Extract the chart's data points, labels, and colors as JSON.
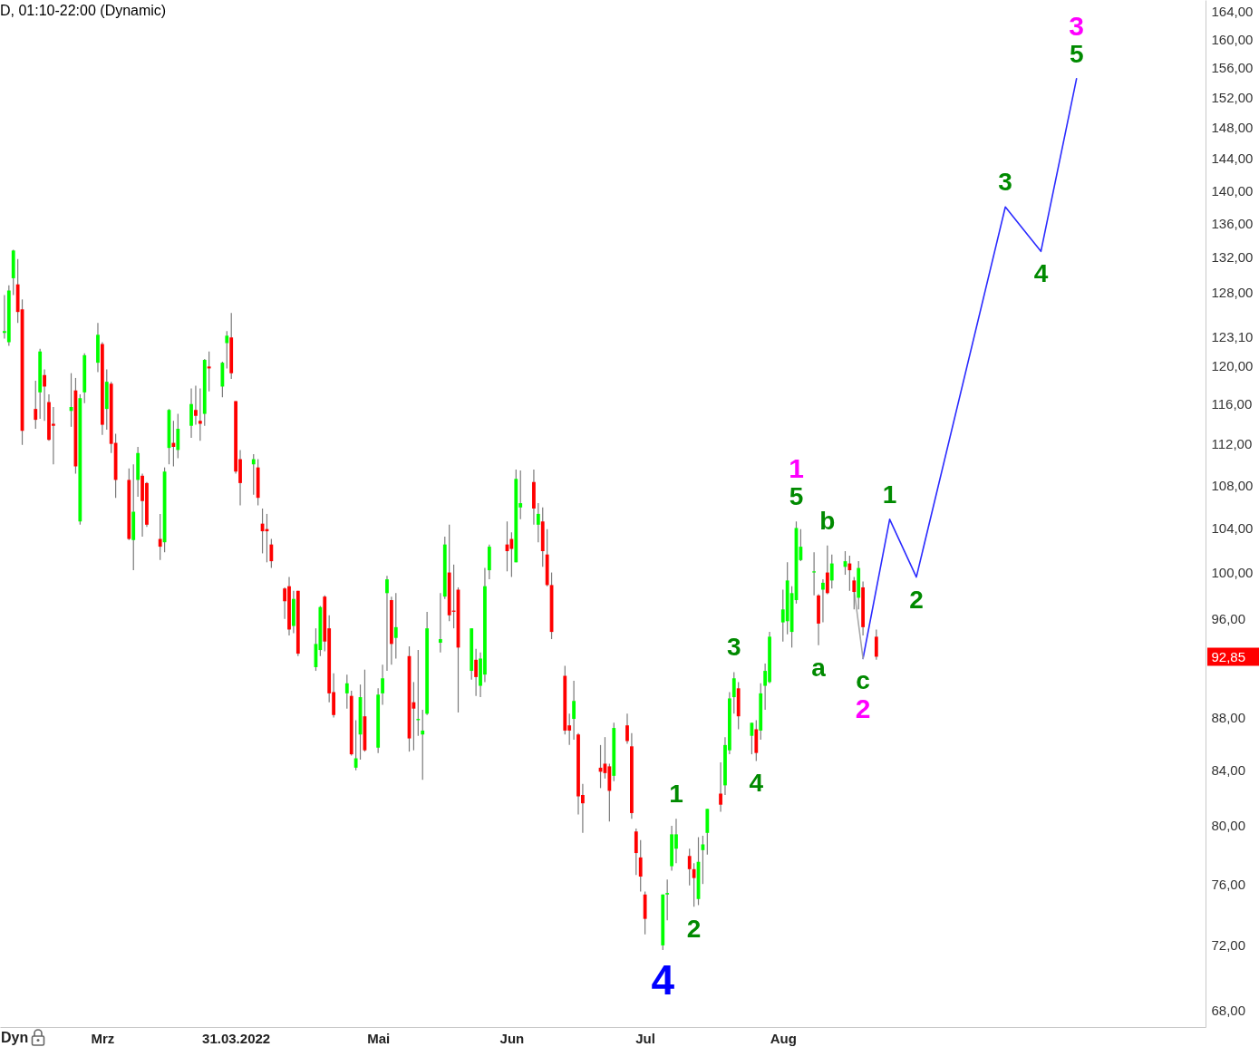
{
  "chart_data": {
    "type": "candlestick",
    "title": "D, 01:10-22:00 (Dynamic)",
    "x": [
      "2022-02-07",
      "2022-02-08",
      "2022-02-09",
      "2022-02-10",
      "2022-02-11",
      "2022-02-14",
      "2022-02-15",
      "2022-02-16",
      "2022-02-17",
      "2022-02-18",
      "2022-02-22",
      "2022-02-23",
      "2022-02-24",
      "2022-02-25",
      "2022-02-28",
      "2022-03-01",
      "2022-03-02",
      "2022-03-03",
      "2022-03-04",
      "2022-03-07",
      "2022-03-08",
      "2022-03-09",
      "2022-03-10",
      "2022-03-11",
      "2022-03-14",
      "2022-03-15",
      "2022-03-16",
      "2022-03-17",
      "2022-03-18",
      "2022-03-21",
      "2022-03-22",
      "2022-03-23",
      "2022-03-24",
      "2022-03-25",
      "2022-03-28",
      "2022-03-29",
      "2022-03-30",
      "2022-03-31",
      "2022-04-01",
      "2022-04-04",
      "2022-04-05",
      "2022-04-06",
      "2022-04-07",
      "2022-04-08",
      "2022-04-11",
      "2022-04-12",
      "2022-04-13",
      "2022-04-14",
      "2022-04-18",
      "2022-04-19",
      "2022-04-20",
      "2022-04-21",
      "2022-04-22",
      "2022-04-25",
      "2022-04-26",
      "2022-04-27",
      "2022-04-28",
      "2022-04-29",
      "2022-05-02",
      "2022-05-03",
      "2022-05-04",
      "2022-05-05",
      "2022-05-06",
      "2022-05-09",
      "2022-05-10",
      "2022-05-11",
      "2022-05-12",
      "2022-05-13",
      "2022-05-16",
      "2022-05-17",
      "2022-05-18",
      "2022-05-19",
      "2022-05-20",
      "2022-05-23",
      "2022-05-24",
      "2022-05-25",
      "2022-05-26",
      "2022-05-27",
      "2022-05-31",
      "2022-06-01",
      "2022-06-02",
      "2022-06-03",
      "2022-06-06",
      "2022-06-07",
      "2022-06-08",
      "2022-06-09",
      "2022-06-10",
      "2022-06-13",
      "2022-06-14",
      "2022-06-15",
      "2022-06-16",
      "2022-06-17",
      "2022-06-21",
      "2022-06-22",
      "2022-06-23",
      "2022-06-24",
      "2022-06-27",
      "2022-06-28",
      "2022-06-29",
      "2022-06-30",
      "2022-07-01",
      "2022-07-05",
      "2022-07-06",
      "2022-07-07",
      "2022-07-08",
      "2022-07-11",
      "2022-07-12",
      "2022-07-13",
      "2022-07-14",
      "2022-07-15",
      "2022-07-18",
      "2022-07-19",
      "2022-07-20",
      "2022-07-21",
      "2022-07-22",
      "2022-07-25",
      "2022-07-26",
      "2022-07-27",
      "2022-07-28",
      "2022-07-29",
      "2022-08-01",
      "2022-08-02",
      "2022-08-03",
      "2022-08-04",
      "2022-08-05",
      "2022-08-08",
      "2022-08-09",
      "2022-08-10",
      "2022-08-11",
      "2022-08-12",
      "2022-08-15",
      "2022-08-16",
      "2022-08-17",
      "2022-08-18",
      "2022-08-19",
      "2022-08-22"
    ],
    "ohlc": [
      [
        123.5,
        127.7,
        122.9,
        123.7
      ],
      [
        122.5,
        128.8,
        122.1,
        128.2
      ],
      [
        129.6,
        132.9,
        127.7,
        132.8
      ],
      [
        128.9,
        131.8,
        124.6,
        125.8
      ],
      [
        126.1,
        127.2,
        111.9,
        113.3
      ],
      [
        115.5,
        118.4,
        113.5,
        114.4
      ],
      [
        117.2,
        121.8,
        114.5,
        121.5
      ],
      [
        119.0,
        119.6,
        114.3,
        117.8
      ],
      [
        116.2,
        117.0,
        112.3,
        112.4
      ],
      [
        114.0,
        115.7,
        110.0,
        113.8
      ],
      [
        115.3,
        119.2,
        113.7,
        115.7
      ],
      [
        117.4,
        118.7,
        109.1,
        109.8
      ],
      [
        104.6,
        117.0,
        104.3,
        116.6
      ],
      [
        117.2,
        121.3,
        116.1,
        121.1
      ],
      [
        120.3,
        124.6,
        119.3,
        123.3
      ],
      [
        122.3,
        122.5,
        112.9,
        113.9
      ],
      [
        115.5,
        119.6,
        113.4,
        118.3
      ],
      [
        118.1,
        118.3,
        111.1,
        112.0
      ],
      [
        112.1,
        113.0,
        106.8,
        108.5
      ],
      [
        108.5,
        109.6,
        102.9,
        103.0
      ],
      [
        102.9,
        110.0,
        100.2,
        105.5
      ],
      [
        108.5,
        111.7,
        106.9,
        111.1
      ],
      [
        108.9,
        109.1,
        103.2,
        106.5
      ],
      [
        108.2,
        108.3,
        104.1,
        104.3
      ],
      [
        103.0,
        105.3,
        101.1,
        102.3
      ],
      [
        102.7,
        109.7,
        101.8,
        109.3
      ],
      [
        111.6,
        115.5,
        110.0,
        115.4
      ],
      [
        112.1,
        114.3,
        109.8,
        111.7
      ],
      [
        111.4,
        115.0,
        110.6,
        113.5
      ],
      [
        113.8,
        117.6,
        112.6,
        116.0
      ],
      [
        115.4,
        117.9,
        113.9,
        114.8
      ],
      [
        114.3,
        117.6,
        112.3,
        114.0
      ],
      [
        115.0,
        120.7,
        113.8,
        120.6
      ],
      [
        119.9,
        121.5,
        117.3,
        119.7
      ],
      [
        117.8,
        120.4,
        116.7,
        120.3
      ],
      [
        122.4,
        123.7,
        119.7,
        123.2
      ],
      [
        123.0,
        125.7,
        118.6,
        119.2
      ],
      [
        116.3,
        116.3,
        109.1,
        109.3
      ],
      [
        110.5,
        111.4,
        106.1,
        108.2
      ],
      [
        110.0,
        111.0,
        107.1,
        110.5
      ],
      [
        109.7,
        110.5,
        106.1,
        106.8
      ],
      [
        104.4,
        105.8,
        101.7,
        103.7
      ],
      [
        103.9,
        105.3,
        100.9,
        103.7
      ],
      [
        102.5,
        103.0,
        100.4,
        101.0
      ],
      [
        98.6,
        98.7,
        96.0,
        97.5
      ],
      [
        98.8,
        99.6,
        94.6,
        95.1
      ],
      [
        95.4,
        98.4,
        94.8,
        97.7
      ],
      [
        98.4,
        98.4,
        92.9,
        93.1
      ],
      [
        92.0,
        95.2,
        91.7,
        93.9
      ],
      [
        93.4,
        97.1,
        92.9,
        97.0
      ],
      [
        97.9,
        98.0,
        93.3,
        94.1
      ],
      [
        95.2,
        96.3,
        89.2,
        89.9
      ],
      [
        90.0,
        91.5,
        88.0,
        88.2
      ],
      [
        89.9,
        91.4,
        88.7,
        90.7
      ],
      [
        89.7,
        90.1,
        85.1,
        85.2
      ],
      [
        84.2,
        87.8,
        84.0,
        84.9
      ],
      [
        86.7,
        90.6,
        84.8,
        89.6
      ],
      [
        88.1,
        91.8,
        85.4,
        85.5
      ],
      [
        85.7,
        90.3,
        85.3,
        89.8
      ],
      [
        89.9,
        92.2,
        89.0,
        91.1
      ],
      [
        98.2,
        99.7,
        91.7,
        99.4
      ],
      [
        97.6,
        97.9,
        92.2,
        93.9
      ],
      [
        94.4,
        98.2,
        92.7,
        95.3
      ],
      [
        92.9,
        93.7,
        85.4,
        86.4
      ],
      [
        89.2,
        90.8,
        85.5,
        88.7
      ],
      [
        87.8,
        93.4,
        86.6,
        87.9
      ],
      [
        86.7,
        88.6,
        83.3,
        87.0
      ],
      [
        88.3,
        96.6,
        88.2,
        95.2
      ],
      [
        94.0,
        98.2,
        93.2,
        94.3
      ],
      [
        97.9,
        103.2,
        97.7,
        102.5
      ],
      [
        100.0,
        104.3,
        95.8,
        96.3
      ],
      [
        96.7,
        100.7,
        95.2,
        96.6
      ],
      [
        98.5,
        98.7,
        88.4,
        93.6
      ],
      [
        91.7,
        95.2,
        91.0,
        95.2
      ],
      [
        92.6,
        93.5,
        89.7,
        91.2
      ],
      [
        90.5,
        93.2,
        89.6,
        92.7
      ],
      [
        91.4,
        100.4,
        90.8,
        98.8
      ],
      [
        100.2,
        102.5,
        99.4,
        102.3
      ],
      [
        102.5,
        104.6,
        100.1,
        101.9
      ],
      [
        103.0,
        103.6,
        99.6,
        102.1
      ],
      [
        100.9,
        109.5,
        100.9,
        108.6
      ],
      [
        105.9,
        109.4,
        104.8,
        106.3
      ],
      [
        108.3,
        109.5,
        104.3,
        105.8
      ],
      [
        104.3,
        106.3,
        102.7,
        105.3
      ],
      [
        104.6,
        105.9,
        100.5,
        101.9
      ],
      [
        101.6,
        103.9,
        98.8,
        98.9
      ],
      [
        98.9,
        100.0,
        94.3,
        94.9
      ],
      [
        91.3,
        92.1,
        86.7,
        87.0
      ],
      [
        87.4,
        88.3,
        85.9,
        87.0
      ],
      [
        87.9,
        90.9,
        86.3,
        89.3
      ],
      [
        86.7,
        86.8,
        80.8,
        82.1
      ],
      [
        82.2,
        83.0,
        79.5,
        81.6
      ],
      [
        84.2,
        85.9,
        82.7,
        83.9
      ],
      [
        84.5,
        86.5,
        83.4,
        83.8
      ],
      [
        84.3,
        84.5,
        80.3,
        82.5
      ],
      [
        83.6,
        87.6,
        83.2,
        87.2
      ],
      [
        87.4,
        88.3,
        86.0,
        86.2
      ],
      [
        85.8,
        86.8,
        80.5,
        80.9
      ],
      [
        79.6,
        79.8,
        76.6,
        78.1
      ],
      [
        77.8,
        79.0,
        75.5,
        76.5
      ],
      [
        75.3,
        75.5,
        72.7,
        73.7
      ],
      [
        72.0,
        75.3,
        71.7,
        75.3
      ],
      [
        75.3,
        76.3,
        73.6,
        75.4
      ],
      [
        77.2,
        80.0,
        76.9,
        79.4
      ],
      [
        78.4,
        80.5,
        77.4,
        79.4
      ],
      [
        77.9,
        78.4,
        75.9,
        77.0
      ],
      [
        77.0,
        77.4,
        74.5,
        76.4
      ],
      [
        75.0,
        79.2,
        74.6,
        77.5
      ],
      [
        78.3,
        79.3,
        76.0,
        78.7
      ],
      [
        79.5,
        81.2,
        78.0,
        81.2
      ],
      [
        82.3,
        84.6,
        81.0,
        81.5
      ],
      [
        82.9,
        86.5,
        82.2,
        85.9
      ],
      [
        85.5,
        90.0,
        85.2,
        89.5
      ],
      [
        89.6,
        91.6,
        88.3,
        91.1
      ],
      [
        90.3,
        90.8,
        87.1,
        88.1
      ],
      [
        86.6,
        87.6,
        85.2,
        87.6
      ],
      [
        87.1,
        87.8,
        84.7,
        85.3
      ],
      [
        87.0,
        90.7,
        86.3,
        89.9
      ],
      [
        90.5,
        92.3,
        88.6,
        91.7
      ],
      [
        90.8,
        94.9,
        90.7,
        94.5
      ],
      [
        95.7,
        98.5,
        94.1,
        96.8
      ],
      [
        95.8,
        100.9,
        94.7,
        99.3
      ],
      [
        94.9,
        98.8,
        93.6,
        98.2
      ],
      [
        97.6,
        104.6,
        97.3,
        104.0
      ],
      [
        101.1,
        103.9,
        101.0,
        102.3
      ],
      [
        100.0,
        101.8,
        98.0,
        100.1
      ],
      [
        98.0,
        98.1,
        93.8,
        95.6
      ],
      [
        98.5,
        99.4,
        95.7,
        99.1
      ],
      [
        100.0,
        102.4,
        98.1,
        98.2
      ],
      [
        99.3,
        101.6,
        98.6,
        100.8
      ],
      [
        100.5,
        101.9,
        99.8,
        101.0
      ],
      [
        100.8,
        101.5,
        98.4,
        100.2
      ],
      [
        99.3,
        99.6,
        96.8,
        98.3
      ],
      [
        97.8,
        101.0,
        96.8,
        100.4
      ],
      [
        98.7,
        99.2,
        94.6,
        95.3
      ],
      [
        94.5,
        95.1,
        92.6,
        92.85
      ]
    ],
    "colors": [
      "#00ff00",
      "#00ff00",
      "#00ff00",
      "#ff0000",
      "#ff0000",
      "#ff0000",
      "#00ff00",
      "#ff0000",
      "#ff0000",
      "#ff0000",
      "#00ff00",
      "#ff0000",
      "#00ff00",
      "#00ff00",
      "#00ff00",
      "#ff0000",
      "#00ff00",
      "#ff0000",
      "#ff0000",
      "#ff0000",
      "#00ff00",
      "#00ff00",
      "#ff0000",
      "#ff0000",
      "#ff0000",
      "#00ff00",
      "#00ff00",
      "#ff0000",
      "#00ff00",
      "#00ff00",
      "#ff0000",
      "#ff0000",
      "#00ff00",
      "#ff0000",
      "#00ff00",
      "#00ff00",
      "#ff0000",
      "#ff0000",
      "#ff0000",
      "#00ff00",
      "#ff0000",
      "#ff0000",
      "#ff0000",
      "#ff0000",
      "#ff0000",
      "#ff0000",
      "#00ff00",
      "#ff0000",
      "#00ff00",
      "#00ff00",
      "#ff0000",
      "#ff0000",
      "#ff0000",
      "#00ff00",
      "#ff0000",
      "#00ff00",
      "#00ff00",
      "#ff0000",
      "#00ff00",
      "#00ff00",
      "#00ff00",
      "#ff0000",
      "#00ff00",
      "#ff0000",
      "#ff0000",
      "#00ff00",
      "#00ff00",
      "#00ff00",
      "#00ff00",
      "#00ff00",
      "#ff0000",
      "#ff0000",
      "#ff0000",
      "#00ff00",
      "#ff0000",
      "#00ff00",
      "#00ff00",
      "#00ff00",
      "#ff0000",
      "#ff0000",
      "#00ff00",
      "#00ff00",
      "#ff0000",
      "#00ff00",
      "#ff0000",
      "#ff0000",
      "#ff0000",
      "#ff0000",
      "#ff0000",
      "#00ff00",
      "#ff0000",
      "#ff0000",
      "#ff0000",
      "#ff0000",
      "#ff0000",
      "#00ff00",
      "#ff0000",
      "#ff0000",
      "#ff0000",
      "#ff0000",
      "#ff0000",
      "#00ff00",
      "#00ff00",
      "#00ff00",
      "#00ff00",
      "#ff0000",
      "#ff0000",
      "#00ff00",
      "#00ff00",
      "#00ff00",
      "#ff0000",
      "#00ff00",
      "#00ff00",
      "#00ff00",
      "#ff0000",
      "#00ff00",
      "#ff0000",
      "#00ff00",
      "#00ff00",
      "#00ff00",
      "#00ff00",
      "#00ff00",
      "#00ff00",
      "#00ff00",
      "#00ff00",
      "#00ff00",
      "#ff0000",
      "#00ff00",
      "#ff0000",
      "#00ff00",
      "#00ff00",
      "#ff0000",
      "#ff0000",
      "#00ff00",
      "#ff0000",
      "#ff0000"
    ],
    "series": [
      {
        "type": "line",
        "color": "#2b2bff",
        "x": [
          "2022-08-19",
          "2022-08-25",
          "2022-08-31",
          "2022-09-20",
          "2022-09-28",
          "2022-10-06"
        ],
        "values": [
          92.7,
          104.8,
          99.6,
          138.0,
          132.7,
          154.5
        ]
      },
      {
        "type": "line",
        "color": "#a8a8a8",
        "x": [
          "2022-08-17",
          "2022-08-19"
        ],
        "values": [
          98.5,
          92.7
        ]
      }
    ],
    "xlim": [
      "2022-02-06",
      "2022-11-04"
    ],
    "xticks": [
      {
        "value": "2022-03-01",
        "label": "Mrz"
      },
      {
        "value": "2022-03-31",
        "label": "31.03.2022"
      },
      {
        "value": "2022-05-02",
        "label": "Mai"
      },
      {
        "value": "2022-06-01",
        "label": "Jun"
      },
      {
        "value": "2022-07-01",
        "label": "Jul"
      },
      {
        "value": "2022-08-01",
        "label": "Aug"
      }
    ],
    "ylim": [
      67,
      165.6
    ],
    "yticks": [
      {
        "value": 68,
        "label": "68,00"
      },
      {
        "value": 72,
        "label": "72,00"
      },
      {
        "value": 76,
        "label": "76,00"
      },
      {
        "value": 80,
        "label": "80,00"
      },
      {
        "value": 84,
        "label": "84,00"
      },
      {
        "value": 88,
        "label": "88,00"
      },
      {
        "value": 92.85,
        "label": "92,85"
      },
      {
        "value": 96,
        "label": "96,00"
      },
      {
        "value": 100,
        "label": "100,00"
      },
      {
        "value": 104,
        "label": "104,00"
      },
      {
        "value": 108,
        "label": "108,00"
      },
      {
        "value": 112,
        "label": "112,00"
      },
      {
        "value": 116,
        "label": "116,00"
      },
      {
        "value": 120,
        "label": "120,00"
      },
      {
        "value": 123.1,
        "label": "123,10"
      },
      {
        "value": 128,
        "label": "128,00"
      },
      {
        "value": 132,
        "label": "132,00"
      },
      {
        "value": 136,
        "label": "136,00"
      },
      {
        "value": 140,
        "label": "140,00"
      },
      {
        "value": 144,
        "label": "144,00"
      },
      {
        "value": 148,
        "label": "148,00"
      },
      {
        "value": 152,
        "label": "152,00"
      },
      {
        "value": 156,
        "label": "156,00"
      },
      {
        "value": 160,
        "label": "160,00"
      },
      {
        "value": 164,
        "label": "164,00"
      }
    ],
    "log": true,
    "annotations": [
      {
        "text": "5",
        "x": "2022-08-04",
        "y": 104.6
      },
      {
        "text": "1",
        "x": "2022-08-04",
        "y": 104.6
      },
      {
        "text": "b",
        "x": "2022-08-11",
        "y": 102.4
      },
      {
        "text": "a",
        "x": "2022-08-09",
        "y": 93.8
      },
      {
        "text": "c",
        "x": "2022-08-19",
        "y": 92.7
      },
      {
        "text": "2",
        "x": "2022-08-19",
        "y": 92.7
      },
      {
        "text": "3",
        "x": "2022-07-21",
        "y": 91.6
      },
      {
        "text": "4",
        "x": "2022-07-26",
        "y": 84.7
      },
      {
        "text": "1",
        "x": "2022-07-08",
        "y": 80.5
      },
      {
        "text": "2",
        "x": "2022-07-12",
        "y": 74.5
      },
      {
        "text": "4",
        "x": "2022-07-05",
        "y": 71.7
      },
      {
        "text": "1",
        "x": "2022-08-25",
        "y": 104.8
      },
      {
        "text": "2",
        "x": "2022-08-31",
        "y": 99.6
      },
      {
        "text": "3",
        "x": "2022-09-20",
        "y": 138.0
      },
      {
        "text": "4",
        "x": "2022-09-28",
        "y": 132.7
      },
      {
        "text": "5",
        "x": "2022-10-06",
        "y": 154.5
      },
      {
        "text": "3",
        "x": "2022-10-06",
        "y": 154.5
      },
      "Dyn"
    ]
  }
}
